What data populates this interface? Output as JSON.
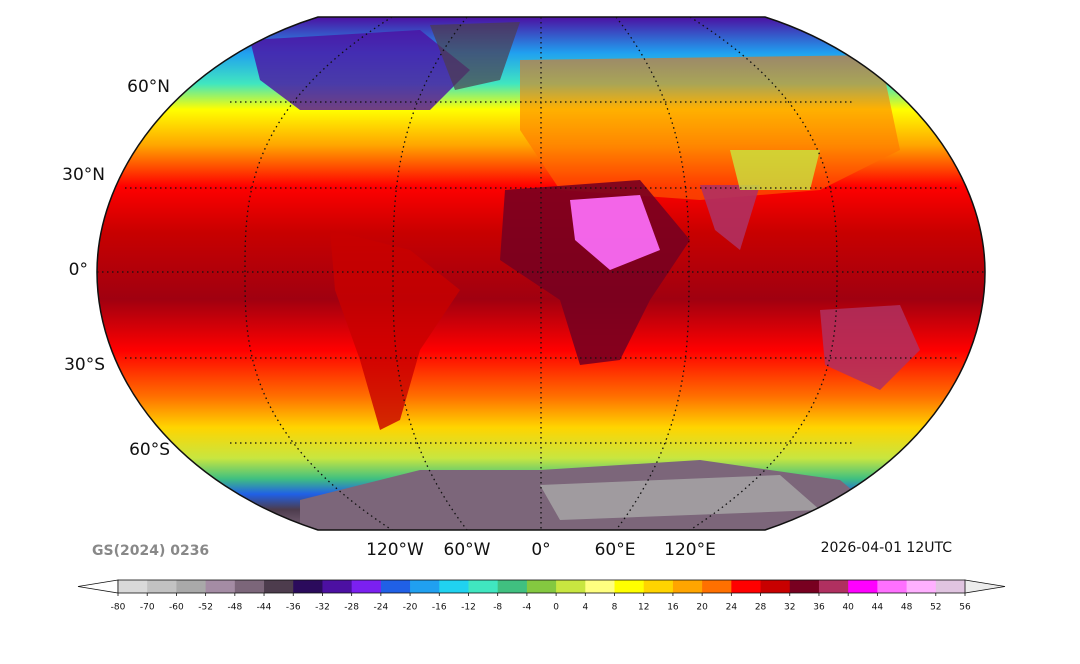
{
  "map": {
    "lat_labels": [
      "60°N",
      "30°N",
      "0°",
      "30°S",
      "60°S"
    ],
    "lon_labels": [
      "120°W",
      "60°W",
      "0°",
      "60°E",
      "120°E"
    ],
    "source": "GS(2024) 0236",
    "timestamp": "2026-04-01 12UTC"
  },
  "colorbar": {
    "ticks": [
      -80,
      -70,
      -60,
      -52,
      -48,
      -44,
      -36,
      -32,
      -28,
      -24,
      -20,
      -16,
      -12,
      -8,
      -4,
      0,
      4,
      8,
      12,
      16,
      20,
      24,
      28,
      32,
      36,
      40,
      44,
      48,
      52,
      56
    ],
    "colors": [
      "#d9d9d9",
      "#c2c2c2",
      "#a9a9a9",
      "#a48ca4",
      "#7c667a",
      "#4d3c4d",
      "#2b0b5c",
      "#4c10a2",
      "#7b20f0",
      "#2060e6",
      "#20a0f0",
      "#20d2f0",
      "#40e6c0",
      "#40c080",
      "#84c840",
      "#c8e640",
      "#ffff80",
      "#ffff00",
      "#ffd400",
      "#ffa500",
      "#ff7000",
      "#ff0000",
      "#c80000",
      "#780020",
      "#b03060",
      "#ff00ff",
      "#ff70ff",
      "#ffb0ff",
      "#e0c4e0"
    ],
    "under_color": "#ffffff",
    "over_color": "#ececec"
  }
}
